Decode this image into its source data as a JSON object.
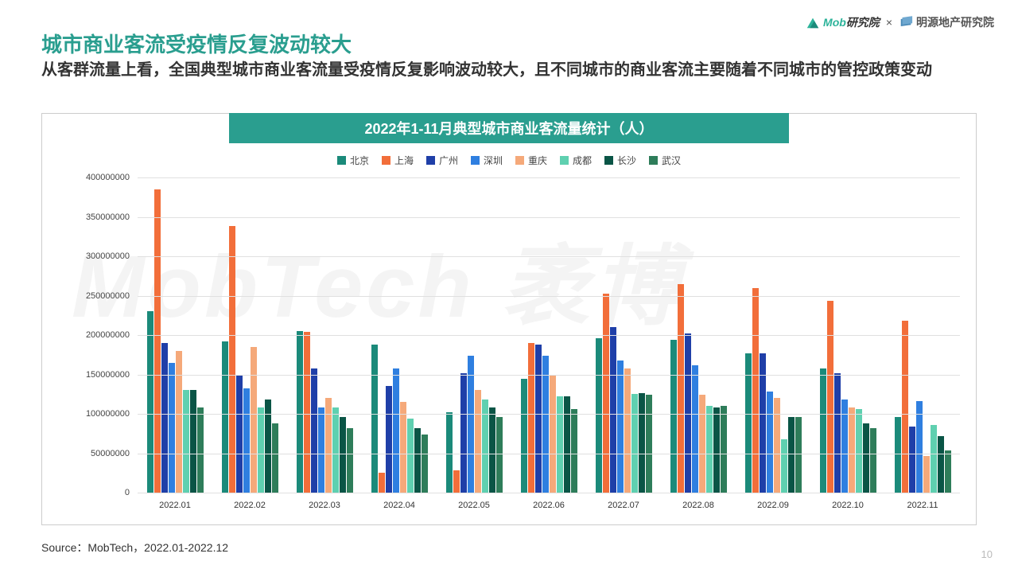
{
  "header": {
    "mob_logo_text": "Mob研究院",
    "separator": "×",
    "mingyuan_logo_text": "明源地产研究院"
  },
  "title": "城市商业客流受疫情反复波动较大",
  "subtitle": "从客群流量上看，全国典型城市商业客流量受疫情反复影响波动较大，且不同城市的商业客流主要随着不同城市的管控政策变动",
  "chart": {
    "type": "bar",
    "title": "2022年1-11月典型城市商业客流量统计（人）",
    "y_max": 400000000,
    "y_tick_step": 50000000,
    "y_ticks_labels": [
      "0",
      "50000000",
      "100000000",
      "150000000",
      "200000000",
      "250000000",
      "300000000",
      "350000000",
      "400000000"
    ],
    "categories": [
      "2022.01",
      "2022.02",
      "2022.03",
      "2022.04",
      "2022.05",
      "2022.06",
      "2022.07",
      "2022.08",
      "2022.09",
      "2022.10",
      "2022.11"
    ],
    "series": [
      {
        "name": "北京",
        "color": "#1b8a7a"
      },
      {
        "name": "上海",
        "color": "#f26e3a"
      },
      {
        "name": "广州",
        "color": "#1f3fa8"
      },
      {
        "name": "深圳",
        "color": "#2f7fe0"
      },
      {
        "name": "重庆",
        "color": "#f5a97a"
      },
      {
        "name": "成都",
        "color": "#5fd0b0"
      },
      {
        "name": "长沙",
        "color": "#0a5546"
      },
      {
        "name": "武汉",
        "color": "#2e7d5a"
      }
    ],
    "values": [
      [
        230000000,
        385000000,
        190000000,
        165000000,
        180000000,
        130000000,
        130000000,
        108000000
      ],
      [
        192000000,
        338000000,
        148000000,
        132000000,
        185000000,
        108000000,
        118000000,
        88000000
      ],
      [
        205000000,
        204000000,
        158000000,
        108000000,
        120000000,
        108000000,
        96000000,
        82000000
      ],
      [
        188000000,
        25000000,
        135000000,
        158000000,
        115000000,
        94000000,
        82000000,
        74000000
      ],
      [
        102000000,
        28000000,
        152000000,
        174000000,
        130000000,
        118000000,
        108000000,
        96000000
      ],
      [
        144000000,
        190000000,
        188000000,
        174000000,
        150000000,
        122000000,
        122000000,
        106000000
      ],
      [
        196000000,
        253000000,
        210000000,
        168000000,
        158000000,
        125000000,
        126000000,
        124000000
      ],
      [
        194000000,
        265000000,
        202000000,
        162000000,
        124000000,
        110000000,
        108000000,
        110000000
      ],
      [
        177000000,
        260000000,
        177000000,
        128000000,
        120000000,
        68000000,
        96000000,
        96000000
      ],
      [
        158000000,
        243000000,
        152000000,
        118000000,
        108000000,
        106000000,
        88000000,
        82000000
      ],
      [
        96000000,
        218000000,
        84000000,
        116000000,
        46000000,
        86000000,
        72000000,
        54000000
      ]
    ],
    "grid_color": "#e0e0e0",
    "background_color": "#ffffff"
  },
  "watermark": "MobTech 袤博",
  "source": "Source：MobTech，2022.01-2022.12",
  "page_number": "10"
}
